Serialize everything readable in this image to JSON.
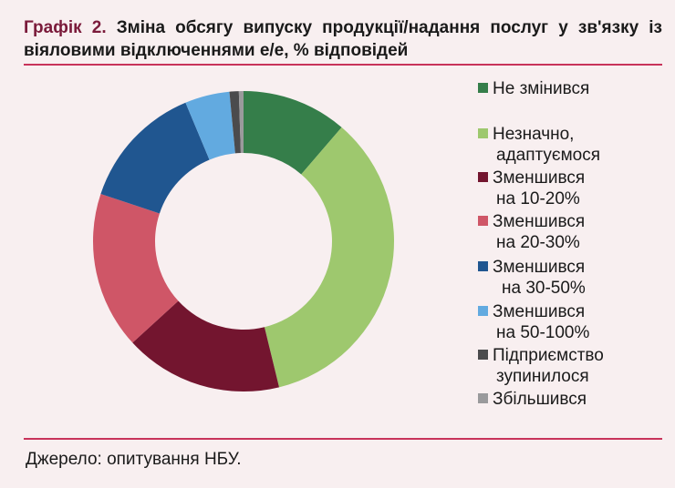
{
  "title": {
    "prefix": "Графік 2.",
    "text": "Зміна обсягу випуску продукції/надання послуг у зв'язку із віяловими відключеннями е/е, % відповідей"
  },
  "source": "Джерело: опитування НБУ.",
  "legend": [
    {
      "line1": "Не змінився",
      "line2": "",
      "color": "#357e4a"
    },
    {
      "line1": "Незначно,",
      "line2": "адаптуємося",
      "color": "#9ec86e"
    },
    {
      "line1": "Зменшився",
      "line2": "на 10-20%",
      "color": "#73152f"
    },
    {
      "line1": "Зменшився",
      "line2": "на 20-30%",
      "color": "#cf5667"
    },
    {
      "line1": "Зменшився",
      "line2": " на 30-50%",
      "color": "#205690"
    },
    {
      "line1": "Зменшився",
      "line2": "на 50-100%",
      "color": "#62aae0"
    },
    {
      "line1": "Підприємство",
      "line2": "зупинилося",
      "color": "#4b4b4d"
    },
    {
      "line1": "Збільшився",
      "line2": "",
      "color": "#9a9a9c"
    }
  ],
  "chart_data": {
    "type": "pie",
    "subtype": "donut",
    "title": "Графік 2. Зміна обсягу випуску продукції/надання послуг у зв'язку із віяловими відключеннями е/е, % відповідей",
    "categories": [
      "Не змінився",
      "Незначно, адаптуємося",
      "Зменшився на 10-20%",
      "Зменшився на 20-30%",
      "Зменшився на 30-50%",
      "Зменшився на 50-100%",
      "Підприємство зупинилося",
      "Збільшився"
    ],
    "values": [
      11.3,
      34.9,
      17.0,
      16.9,
      13.6,
      4.8,
      1.0,
      0.5
    ],
    "colors": [
      "#357e4a",
      "#9ec86e",
      "#73152f",
      "#cf5667",
      "#205690",
      "#62aae0",
      "#4b4b4d",
      "#9a9a9c"
    ],
    "unit": "% відповідей",
    "legend_position": "right",
    "source": "Джерело: опитування НБУ."
  }
}
